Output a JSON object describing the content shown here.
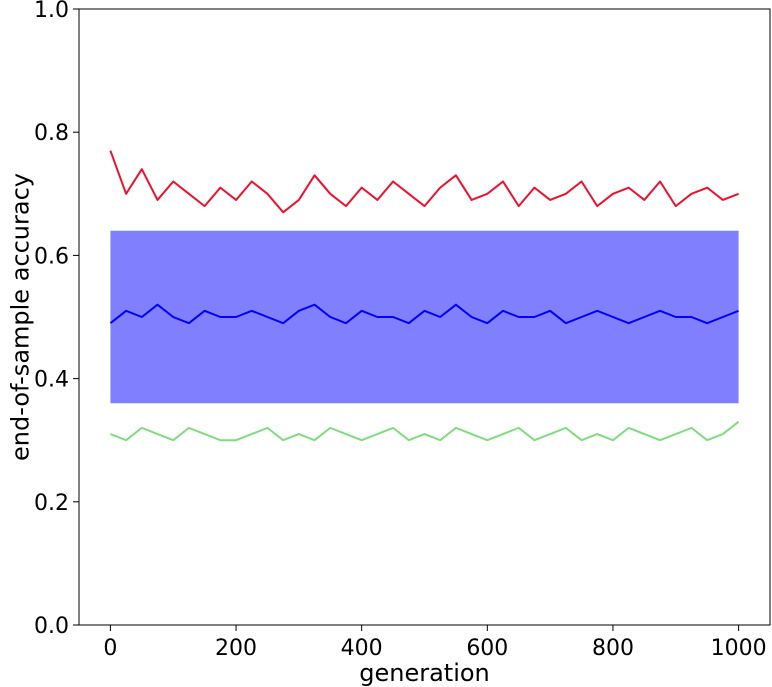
{
  "chart_data": {
    "type": "line",
    "xlabel": "generation",
    "ylabel": "end-of-sample accuracy",
    "xlim": [
      -50,
      1050
    ],
    "ylim": [
      0.0,
      1.0
    ],
    "x_ticks": [
      0,
      200,
      400,
      600,
      800,
      1000
    ],
    "x_tick_labels": [
      "0",
      "200",
      "400",
      "600",
      "800",
      "1000"
    ],
    "y_ticks": [
      0.0,
      0.2,
      0.4,
      0.6,
      0.8,
      1.0
    ],
    "y_tick_labels": [
      "0.0",
      "0.2",
      "0.4",
      "0.6",
      "0.8",
      "1.0"
    ],
    "grid": false,
    "legend": "none",
    "x": [
      0,
      25,
      50,
      75,
      100,
      125,
      150,
      175,
      200,
      225,
      250,
      275,
      300,
      325,
      350,
      375,
      400,
      425,
      450,
      475,
      500,
      525,
      550,
      575,
      600,
      625,
      650,
      675,
      700,
      725,
      750,
      775,
      800,
      825,
      850,
      875,
      900,
      925,
      950,
      975,
      1000
    ],
    "series": [
      {
        "role": "max",
        "color": "#f0102e",
        "values": [
          0.77,
          0.7,
          0.74,
          0.69,
          0.72,
          0.7,
          0.68,
          0.71,
          0.69,
          0.72,
          0.7,
          0.67,
          0.69,
          0.73,
          0.7,
          0.68,
          0.71,
          0.69,
          0.72,
          0.7,
          0.68,
          0.71,
          0.73,
          0.69,
          0.7,
          0.72,
          0.68,
          0.71,
          0.69,
          0.7,
          0.72,
          0.68,
          0.7,
          0.71,
          0.69,
          0.72,
          0.68,
          0.7,
          0.71,
          0.69,
          0.7
        ]
      },
      {
        "role": "mean",
        "color": "#0000ff",
        "values": [
          0.49,
          0.51,
          0.5,
          0.52,
          0.5,
          0.49,
          0.51,
          0.5,
          0.5,
          0.51,
          0.5,
          0.49,
          0.51,
          0.52,
          0.5,
          0.49,
          0.51,
          0.5,
          0.5,
          0.49,
          0.51,
          0.5,
          0.52,
          0.5,
          0.49,
          0.51,
          0.5,
          0.5,
          0.51,
          0.49,
          0.5,
          0.51,
          0.5,
          0.49,
          0.5,
          0.51,
          0.5,
          0.5,
          0.49,
          0.5,
          0.51
        ]
      },
      {
        "role": "min",
        "color": "#7fdc7f",
        "values": [
          0.31,
          0.3,
          0.32,
          0.31,
          0.3,
          0.32,
          0.31,
          0.3,
          0.3,
          0.31,
          0.32,
          0.3,
          0.31,
          0.3,
          0.32,
          0.31,
          0.3,
          0.31,
          0.32,
          0.3,
          0.31,
          0.3,
          0.32,
          0.31,
          0.3,
          0.31,
          0.32,
          0.3,
          0.31,
          0.32,
          0.3,
          0.31,
          0.3,
          0.32,
          0.31,
          0.3,
          0.31,
          0.32,
          0.3,
          0.31,
          0.33
        ]
      }
    ],
    "band": {
      "color": "#8080ff",
      "lower": [
        0.36,
        0.36,
        0.36,
        0.36,
        0.36,
        0.36,
        0.36,
        0.36,
        0.36,
        0.36,
        0.36,
        0.36,
        0.36,
        0.36,
        0.36,
        0.36,
        0.36,
        0.36,
        0.36,
        0.36,
        0.36,
        0.36,
        0.36,
        0.36,
        0.36,
        0.36,
        0.36,
        0.36,
        0.36,
        0.36,
        0.36,
        0.36,
        0.36,
        0.36,
        0.36,
        0.36,
        0.36,
        0.36,
        0.36,
        0.36,
        0.36
      ],
      "upper": [
        0.64,
        0.64,
        0.64,
        0.64,
        0.64,
        0.64,
        0.64,
        0.64,
        0.64,
        0.64,
        0.64,
        0.64,
        0.64,
        0.64,
        0.64,
        0.64,
        0.64,
        0.64,
        0.64,
        0.64,
        0.64,
        0.64,
        0.64,
        0.64,
        0.64,
        0.64,
        0.64,
        0.64,
        0.64,
        0.64,
        0.64,
        0.64,
        0.64,
        0.64,
        0.64,
        0.64,
        0.64,
        0.64,
        0.64,
        0.64,
        0.64
      ]
    }
  }
}
